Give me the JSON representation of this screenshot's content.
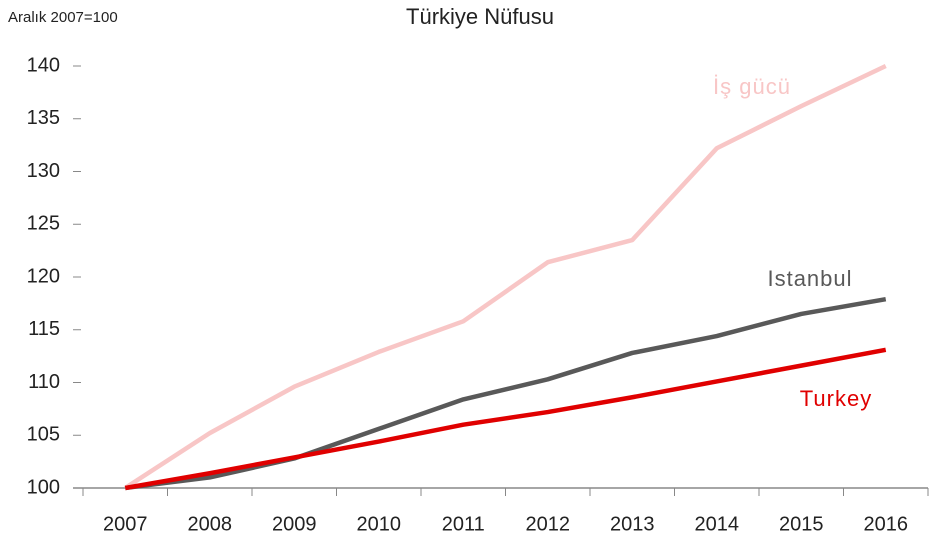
{
  "chart_data": {
    "type": "line",
    "title": "Türkiye Nüfusu",
    "subtitle": "Aralık 2007=100",
    "categories": [
      "2007",
      "2008",
      "2009",
      "2010",
      "2011",
      "2012",
      "2013",
      "2014",
      "2015",
      "2016"
    ],
    "series": [
      {
        "name": "İş gücü",
        "color": "#f8c6c6",
        "values": [
          100,
          105.2,
          109.6,
          112.9,
          115.8,
          121.4,
          123.5,
          132.2,
          136.2,
          140
        ]
      },
      {
        "name": "Istanbul",
        "color": "#595959",
        "values": [
          100,
          101.0,
          102.8,
          105.6,
          108.4,
          110.3,
          112.8,
          114.4,
          116.5,
          117.9
        ]
      },
      {
        "name": "Turkey",
        "color": "#e00000",
        "values": [
          100,
          101.4,
          102.9,
          104.4,
          106.0,
          107.2,
          108.6,
          110.1,
          111.6,
          113.1
        ]
      }
    ],
    "ylim": [
      100,
      140
    ],
    "yticks": [
      100,
      105,
      110,
      115,
      120,
      125,
      130,
      135,
      140
    ],
    "grid": false
  }
}
